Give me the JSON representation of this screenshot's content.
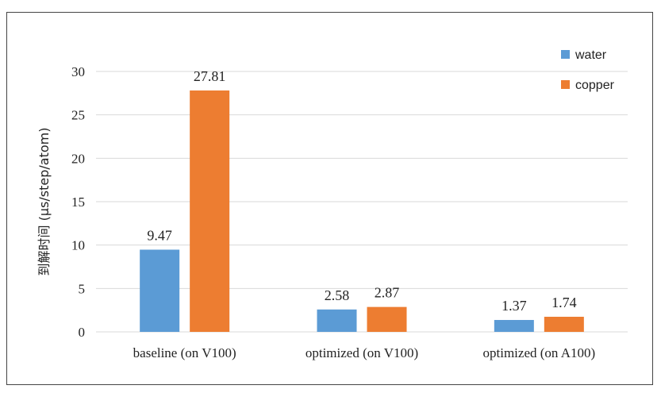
{
  "chart_data": {
    "type": "bar",
    "categories": [
      "baseline (on V100)",
      "optimized (on V100)",
      "optimized (on A100)"
    ],
    "series": [
      {
        "name": "water",
        "color": "#5b9bd5",
        "values": [
          9.47,
          2.58,
          1.37
        ],
        "labels": [
          "9.47",
          "2.58",
          "1.37"
        ]
      },
      {
        "name": "copper",
        "color": "#ed7d31",
        "values": [
          27.81,
          2.87,
          1.74
        ],
        "labels": [
          "27.81",
          "2.87",
          "1.74"
        ]
      }
    ],
    "ylabel": "到解时间 (μs/step/atom)",
    "yticks": [
      "0",
      "5",
      "10",
      "15",
      "20",
      "25",
      "30"
    ],
    "ylim": [
      0,
      30
    ],
    "grid": true,
    "legend_position": "top-right"
  }
}
